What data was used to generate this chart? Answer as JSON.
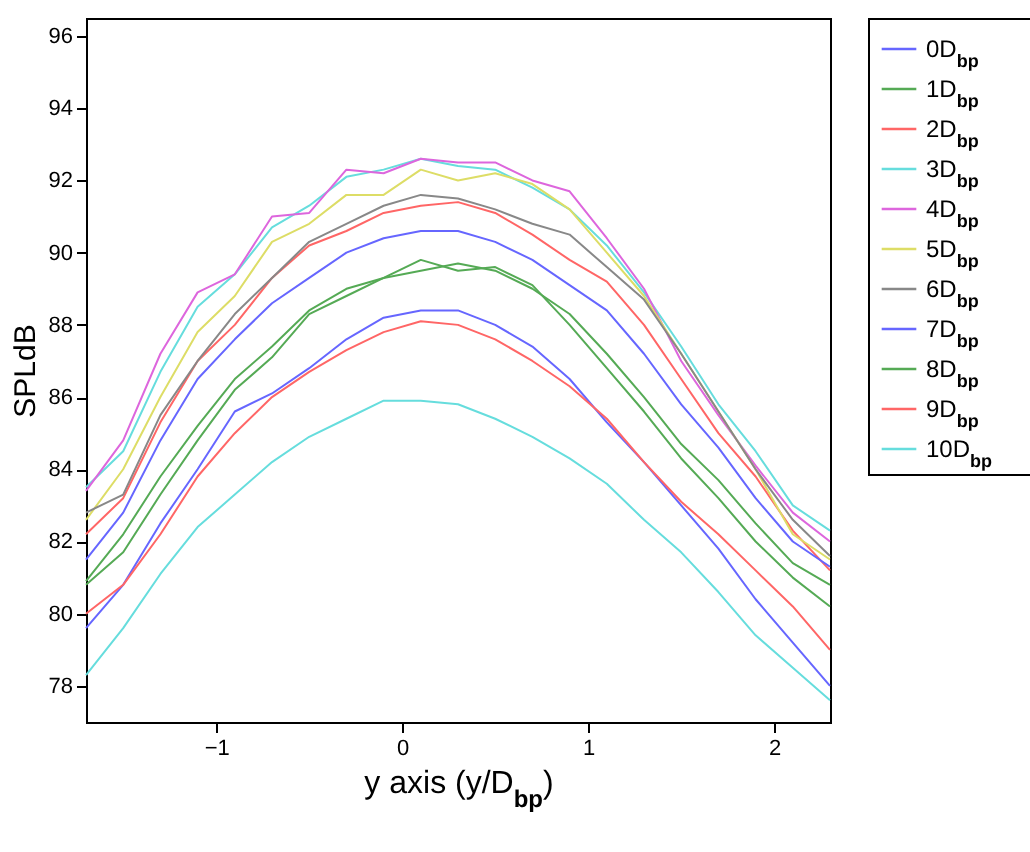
{
  "chart_data": {
    "type": "line",
    "xlabel": "y axis (y/D$_{bp}$)",
    "ylabel": "SPLdB",
    "x": [
      -1.7,
      -1.5,
      -1.3,
      -1.1,
      -0.9,
      -0.7,
      -0.5,
      -0.3,
      -0.1,
      0.1,
      0.3,
      0.5,
      0.7,
      0.9,
      1.1,
      1.3,
      1.5,
      1.7,
      1.9,
      2.1,
      2.3
    ],
    "xlim": [
      -1.7,
      2.3
    ],
    "xticks": [
      -1,
      0,
      1,
      2
    ],
    "ylim": [
      77,
      96.5
    ],
    "yticks": [
      78,
      80,
      82,
      84,
      86,
      88,
      90,
      92,
      94,
      96
    ],
    "grid": false,
    "legend": "top right",
    "marker": "none",
    "line_style": "solid",
    "series": [
      {
        "name": "0D$_{bp}$",
        "color": "#6666ff",
        "values": [
          79.6,
          80.8,
          82.5,
          84.0,
          85.6,
          86.1,
          86.8,
          87.6,
          88.2,
          88.4,
          88.4,
          88.0,
          87.4,
          86.5,
          85.3,
          84.2,
          83.0,
          81.8,
          80.4,
          79.2,
          78.0
        ]
      },
      {
        "name": "1D$_{bp}$",
        "color": "#55aa55",
        "values": [
          80.8,
          81.7,
          83.3,
          84.8,
          86.2,
          87.1,
          88.3,
          88.8,
          89.3,
          89.5,
          89.7,
          89.5,
          89.0,
          88.3,
          87.2,
          86.0,
          84.7,
          83.7,
          82.5,
          81.4,
          80.8
        ]
      },
      {
        "name": "2D$_{bp}$",
        "color": "#ff6666",
        "values": [
          82.2,
          83.2,
          85.3,
          87.0,
          88.0,
          89.3,
          90.2,
          90.6,
          91.1,
          91.3,
          91.4,
          91.1,
          90.5,
          89.8,
          89.2,
          88.0,
          86.5,
          85.0,
          83.8,
          82.3,
          81.2
        ]
      },
      {
        "name": "3D$_{bp}$",
        "color": "#66dddd",
        "values": [
          83.5,
          84.5,
          86.7,
          88.5,
          89.4,
          90.7,
          91.3,
          92.1,
          92.3,
          92.6,
          92.4,
          92.3,
          91.8,
          91.2,
          90.2,
          88.9,
          87.4,
          85.8,
          84.5,
          83.0,
          82.3
        ]
      },
      {
        "name": "4D$_{bp}$",
        "color": "#dd66dd",
        "values": [
          83.4,
          84.8,
          87.2,
          88.9,
          89.4,
          91.0,
          91.1,
          92.3,
          92.2,
          92.6,
          92.5,
          92.5,
          92.0,
          91.7,
          90.4,
          89.0,
          87.0,
          85.5,
          84.1,
          82.8,
          82.0
        ]
      },
      {
        "name": "5D$_{bp}$",
        "color": "#dddd66",
        "values": [
          82.6,
          84.0,
          86.0,
          87.8,
          88.8,
          90.3,
          90.8,
          91.6,
          91.6,
          92.3,
          92.0,
          92.2,
          91.9,
          91.2,
          90.0,
          88.8,
          87.2,
          85.6,
          84.0,
          82.2,
          81.5
        ]
      },
      {
        "name": "6D$_{bp}$",
        "color": "#888888",
        "values": [
          82.8,
          83.3,
          85.5,
          87.0,
          88.3,
          89.3,
          90.3,
          90.8,
          91.3,
          91.6,
          91.5,
          91.2,
          90.8,
          90.5,
          89.6,
          88.7,
          87.2,
          85.6,
          84.0,
          82.6,
          81.6
        ]
      },
      {
        "name": "7D$_{bp}$",
        "color": "#6666ff",
        "values": [
          81.5,
          82.8,
          84.8,
          86.5,
          87.6,
          88.6,
          89.3,
          90.0,
          90.4,
          90.6,
          90.6,
          90.3,
          89.8,
          89.1,
          88.4,
          87.2,
          85.8,
          84.6,
          83.2,
          82.0,
          81.3
        ]
      },
      {
        "name": "8D$_{bp}$",
        "color": "#55aa55",
        "values": [
          80.9,
          82.2,
          83.8,
          85.2,
          86.5,
          87.4,
          88.4,
          89.0,
          89.3,
          89.8,
          89.5,
          89.6,
          89.1,
          88.0,
          86.8,
          85.6,
          84.3,
          83.2,
          82.0,
          81.0,
          80.2
        ]
      },
      {
        "name": "9D$_{bp}$",
        "color": "#ff6666",
        "values": [
          80.0,
          80.8,
          82.2,
          83.8,
          85.0,
          86.0,
          86.7,
          87.3,
          87.8,
          88.1,
          88.0,
          87.6,
          87.0,
          86.3,
          85.4,
          84.2,
          83.1,
          82.2,
          81.2,
          80.2,
          79.0
        ]
      },
      {
        "name": "10D$_{bp}$",
        "color": "#66dddd",
        "values": [
          78.3,
          79.6,
          81.1,
          82.4,
          83.3,
          84.2,
          84.9,
          85.4,
          85.9,
          85.9,
          85.8,
          85.4,
          84.9,
          84.3,
          83.6,
          82.6,
          81.7,
          80.6,
          79.4,
          78.5,
          77.6
        ]
      }
    ]
  }
}
